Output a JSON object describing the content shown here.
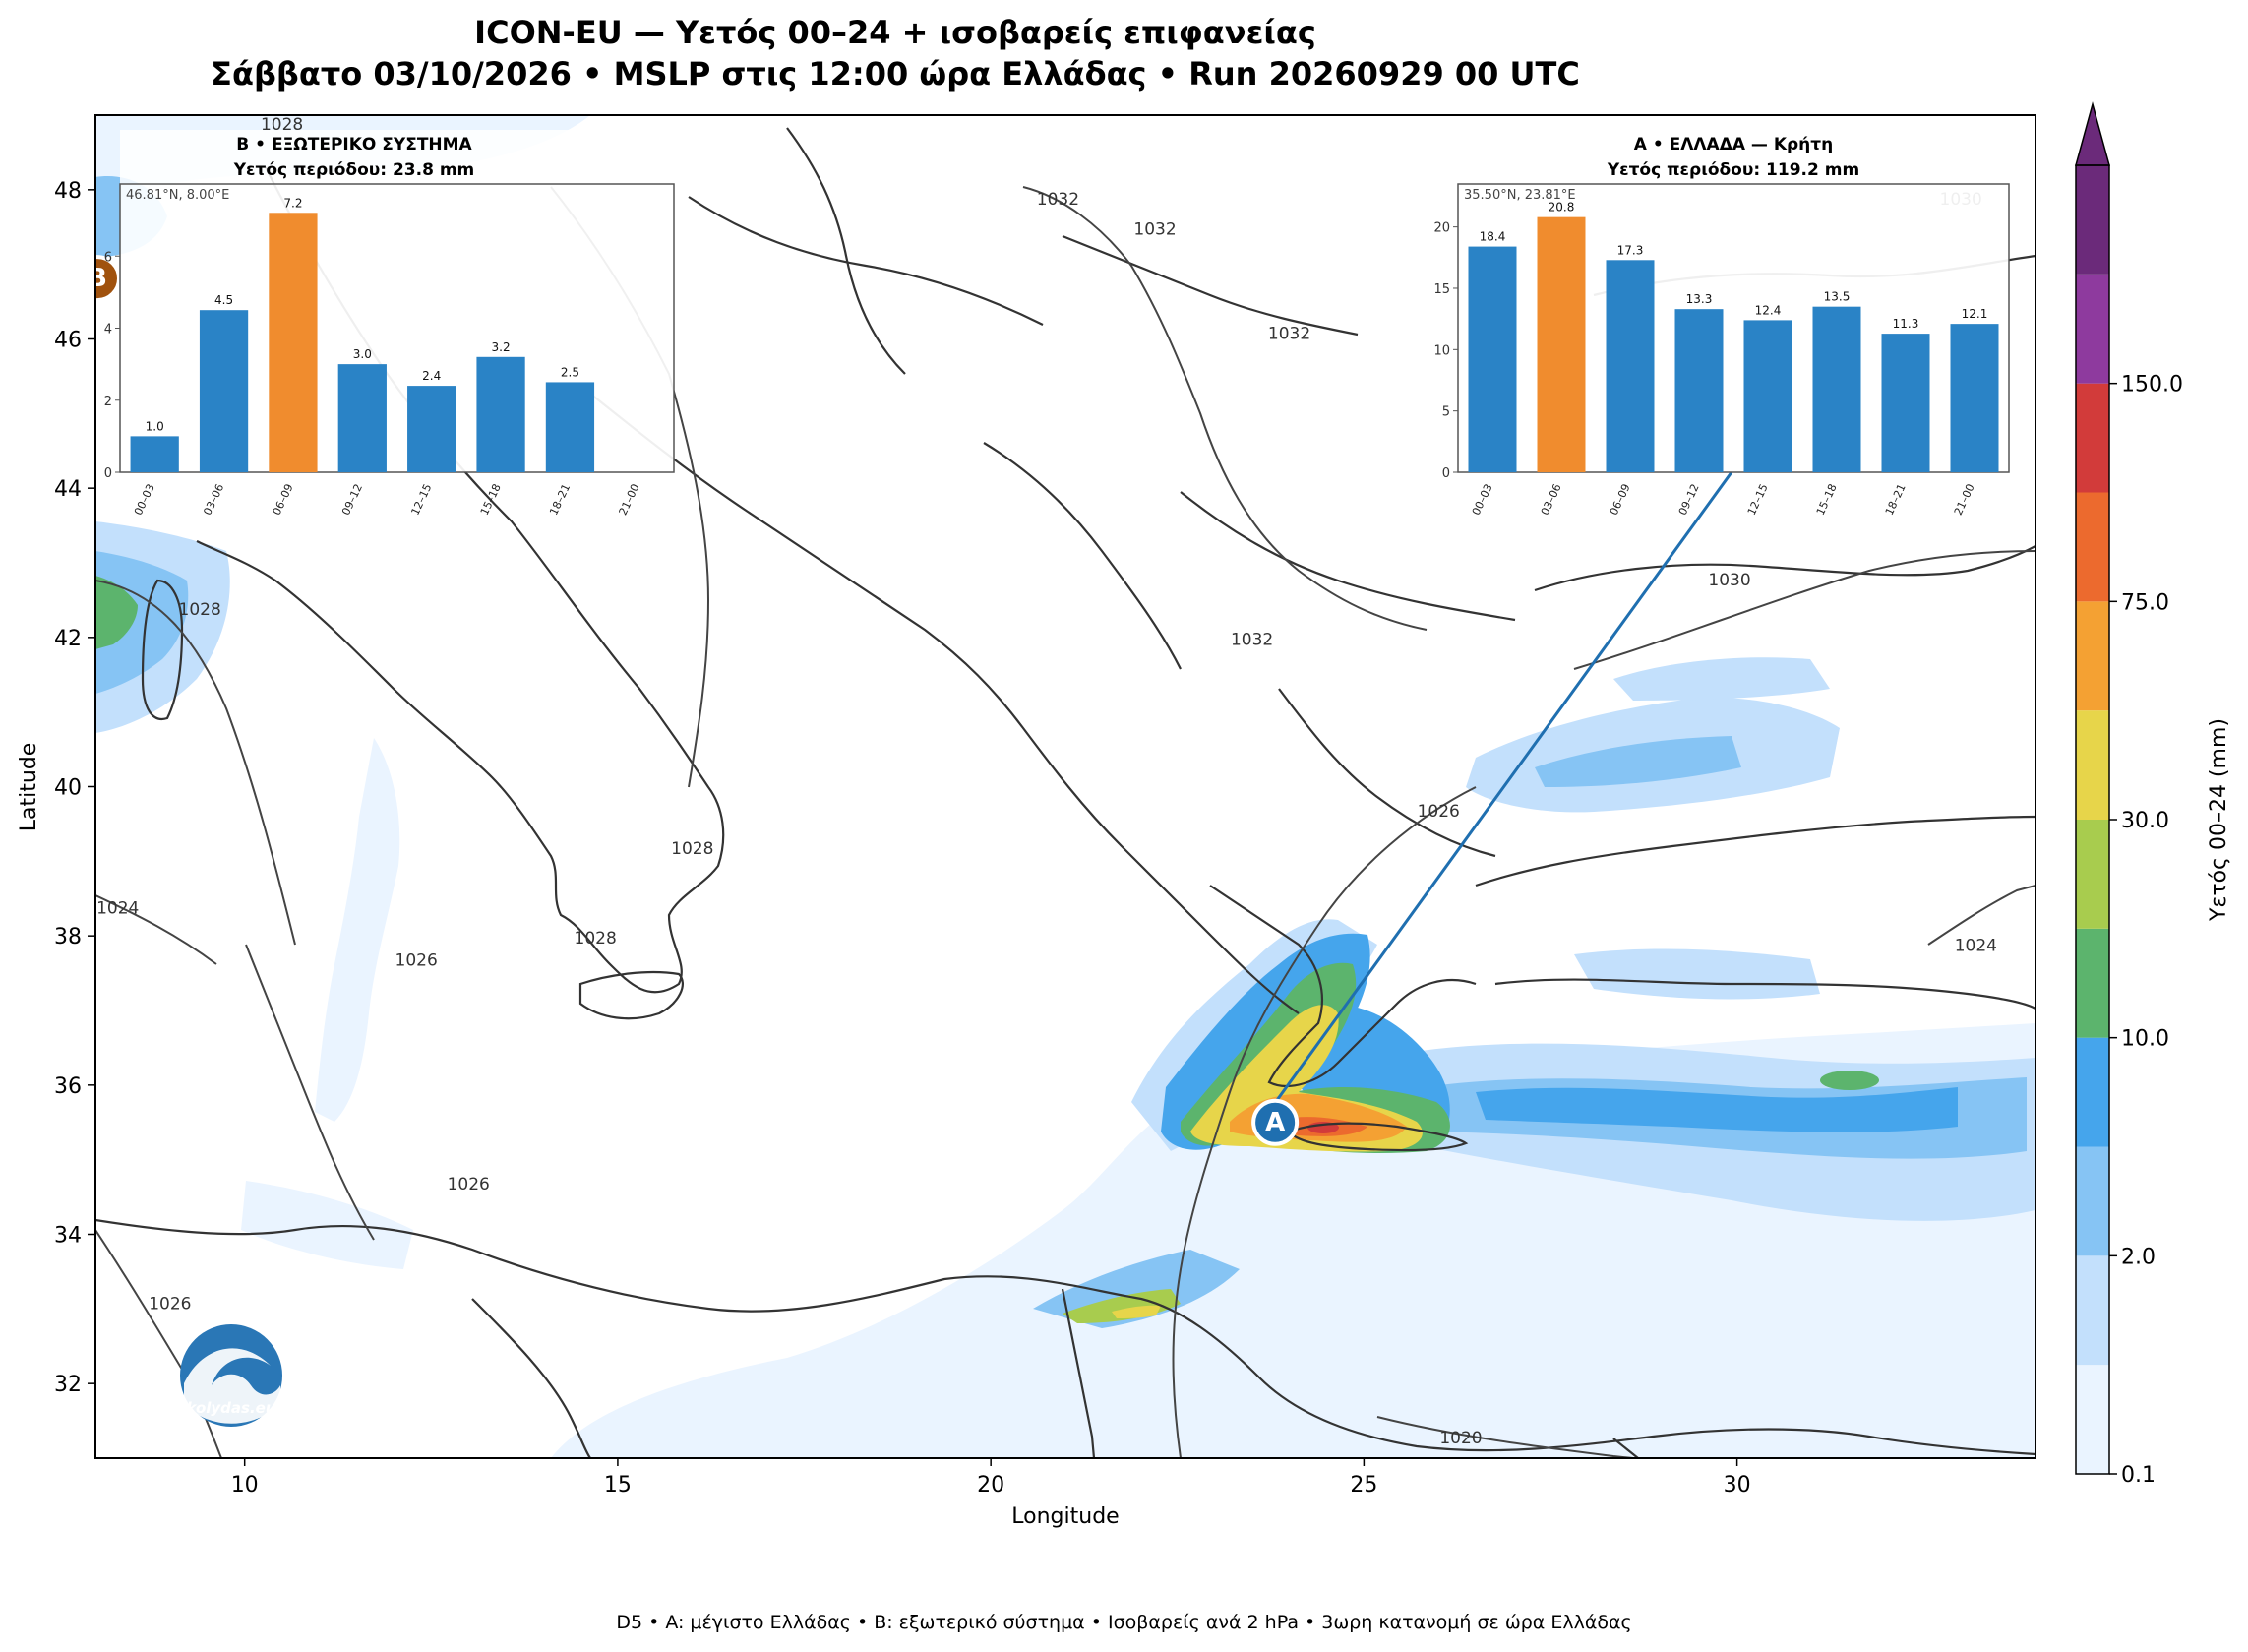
{
  "title": {
    "line1": "ICON-EU — Υετός 00–24 + ισοβαρείς επιφανείας",
    "line2": "Σάββατο 03/10/2026 • MSLP στις 12:00 ώρα Ελλάδας • Run 20260929 00 UTC"
  },
  "axes": {
    "xlabel": "Longitude",
    "ylabel": "Latitude",
    "lon_range": [
      8,
      34
    ],
    "lat_range": [
      31,
      49
    ],
    "x_ticks": [
      10,
      15,
      20,
      25,
      30
    ],
    "y_ticks": [
      32,
      34,
      36,
      38,
      40,
      42,
      44,
      46,
      48
    ]
  },
  "colorbar": {
    "label": "Υετός 00–24 (mm)",
    "tick_labels": [
      "0.1",
      "2.0",
      "10.0",
      "30.0",
      "75.0",
      "150.0"
    ],
    "colors": [
      "#eaf4ff",
      "#c3e0fc",
      "#86c4f4",
      "#45a5ec",
      "#5cb46d",
      "#a8cc4e",
      "#e7d54a",
      "#f4a133",
      "#ec6a2e",
      "#d23b3a",
      "#8e3a9e",
      "#6b2a7a"
    ]
  },
  "isobars": {
    "labels": [
      {
        "text": "1032",
        "lon": 20.9,
        "lat": 47.8
      },
      {
        "text": "1032",
        "lon": 22.2,
        "lat": 47.4
      },
      {
        "text": "1032",
        "lon": 23.5,
        "lat": 41.9
      },
      {
        "text": "1032",
        "lon": 24.0,
        "lat": 46.0
      },
      {
        "text": "1030",
        "lon": 29.9,
        "lat": 42.7
      },
      {
        "text": "1030",
        "lon": 33.0,
        "lat": 47.8
      },
      {
        "text": "1028",
        "lon": 10.5,
        "lat": 48.8
      },
      {
        "text": "1028",
        "lon": 9.4,
        "lat": 42.3
      },
      {
        "text": "1028",
        "lon": 16.0,
        "lat": 39.1
      },
      {
        "text": "1028",
        "lon": 14.7,
        "lat": 37.9
      },
      {
        "text": "1026",
        "lon": 26.0,
        "lat": 39.6
      },
      {
        "text": "1026",
        "lon": 12.3,
        "lat": 37.6
      },
      {
        "text": "1026",
        "lon": 13.0,
        "lat": 34.6
      },
      {
        "text": "1026",
        "lon": 9.0,
        "lat": 33.0
      },
      {
        "text": "1024",
        "lon": 8.3,
        "lat": 38.3
      },
      {
        "text": "1024",
        "lon": 33.2,
        "lat": 37.8
      },
      {
        "text": "1020",
        "lon": 26.3,
        "lat": 31.2
      }
    ]
  },
  "markers": {
    "a": {
      "letter": "A",
      "lon": 23.81,
      "lat": 35.5,
      "color": "#1f6fb0"
    },
    "b": {
      "letter": "B",
      "lon": 8.0,
      "lat": 46.81,
      "color": "#a0520e"
    }
  },
  "inset_b": {
    "heading": "Β • ΕΞΩΤΕΡΙΚΟ ΣΥΣΤΗΜΑ",
    "total": "Υετός περιόδου: 23.8 mm",
    "coords": "46.81°N, 8.00°E",
    "y_ticks": [
      "0",
      "2",
      "4",
      "6"
    ],
    "y_max": 8
  },
  "inset_a": {
    "heading": "Α • ΕΛΛΑΔΑ — Κρήτη",
    "total": "Υετός περιόδου: 119.2 mm",
    "coords": "35.50°N, 23.81°E",
    "y_ticks": [
      "0",
      "5",
      "10",
      "15",
      "20"
    ],
    "y_max": 23.5
  },
  "chart_data": [
    {
      "type": "bar",
      "title": "Β • ΕΞΩΤΕΡΙΚΟ ΣΥΣΤΗΜΑ",
      "categories": [
        "00–03",
        "03–06",
        "06–09",
        "09–12",
        "12–15",
        "15–18",
        "18–21",
        "21–00"
      ],
      "values": [
        1.0,
        4.5,
        7.2,
        3.0,
        2.4,
        3.2,
        2.5,
        0.0
      ],
      "highlight_index": 2,
      "ylim": [
        0,
        8
      ]
    },
    {
      "type": "bar",
      "title": "Α • ΕΛΛΑΔΑ — Κρήτη",
      "categories": [
        "00–03",
        "03–06",
        "06–09",
        "09–12",
        "12–15",
        "15–18",
        "18–21",
        "21–00"
      ],
      "values": [
        18.4,
        20.8,
        17.3,
        13.3,
        12.4,
        13.5,
        11.3,
        12.1
      ],
      "highlight_index": 1,
      "ylim": [
        0,
        23.5
      ]
    }
  ],
  "logo": {
    "text": "kolydas.eu"
  },
  "footer": "D5 • A: μέγιστο Ελλάδας • B: εξωτερικό σύστημα • Ισοβαρείς ανά 2 hPa • 3ωρη κατανομή σε ώρα Ελλάδας"
}
